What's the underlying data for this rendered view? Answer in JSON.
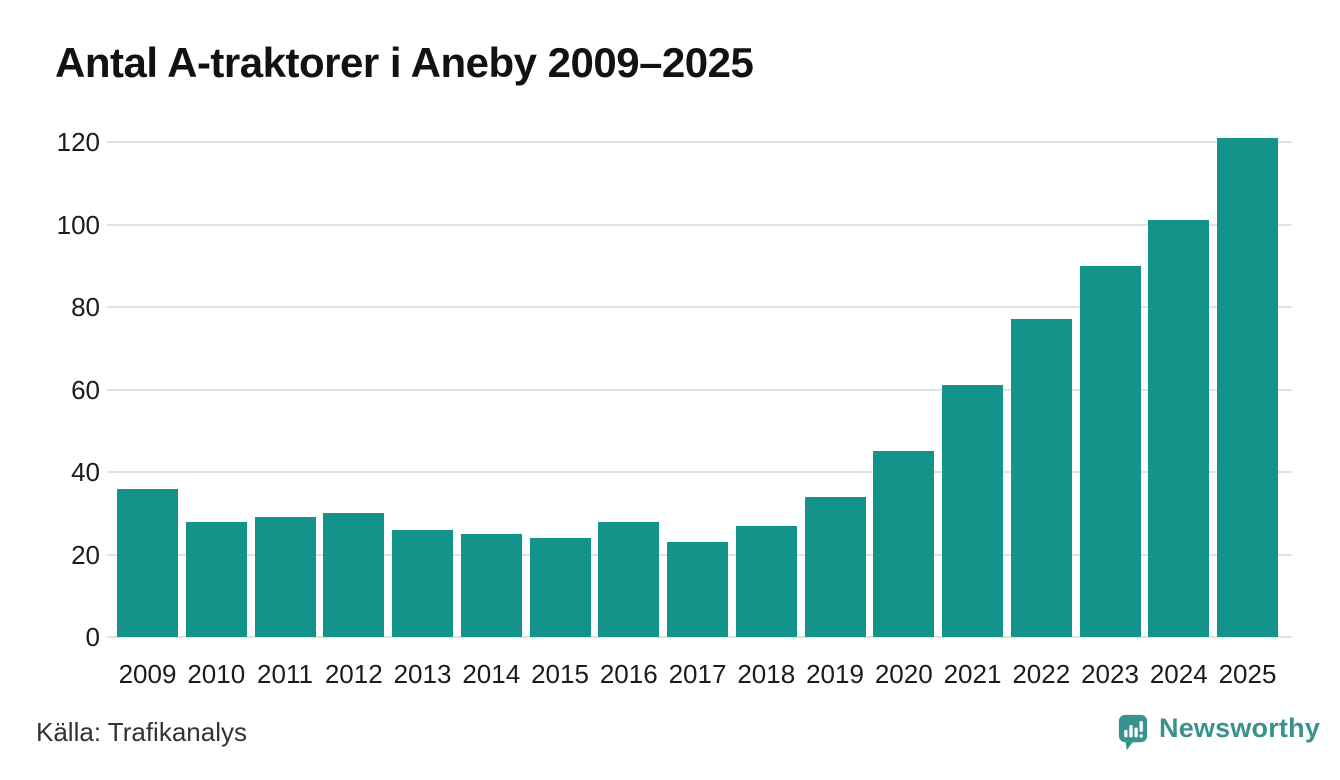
{
  "header": {
    "title": "Antal A-traktorer i Aneby 2009–2025"
  },
  "chart_data": {
    "type": "bar",
    "title": "Antal A-traktorer i Aneby 2009–2025",
    "categories": [
      "2009",
      "2010",
      "2011",
      "2012",
      "2013",
      "2014",
      "2015",
      "2016",
      "2017",
      "2018",
      "2019",
      "2020",
      "2021",
      "2022",
      "2023",
      "2024",
      "2025"
    ],
    "values": [
      36,
      28,
      29,
      30,
      26,
      25,
      24,
      28,
      23,
      27,
      34,
      45,
      61,
      77,
      90,
      101,
      121
    ],
    "xlabel": "",
    "ylabel": "",
    "ylim": [
      0,
      120
    ],
    "yticks": [
      0,
      20,
      40,
      60,
      80,
      100,
      120
    ],
    "grid": true,
    "legend": false,
    "bar_color": "#12948a",
    "gridline_color": "#e2e2e2",
    "background": "#ffffff"
  },
  "footer": {
    "source": "Källa: Trafikanalys",
    "brand": "Newsworthy",
    "brand_color": "#3a928e"
  },
  "icons": {
    "brand_logo": "newsworthy-speech-bubble-bar-chart-icon"
  }
}
